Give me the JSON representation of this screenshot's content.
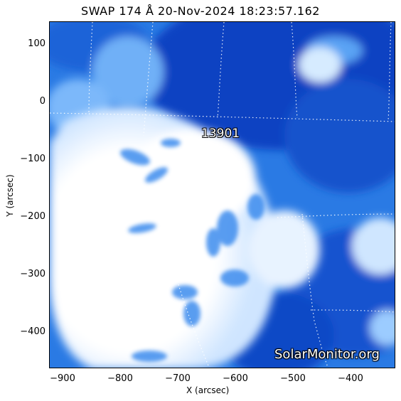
{
  "title": "SWAP 174 Å 20-Nov-2024 18:23:57.162",
  "axes": {
    "xlabel": "X (arcsec)",
    "ylabel": "Y (arcsec)",
    "xticks": [
      "−900",
      "−800",
      "−700",
      "−600",
      "−500",
      "−400"
    ],
    "yticks": [
      "100",
      "0",
      "−100",
      "−200",
      "−300",
      "−400"
    ]
  },
  "active_region_label": "13901",
  "watermark": "SolarMonitor.org",
  "colors": {
    "deep_blue": "#0a3fbf",
    "mid_blue": "#2c7ee8",
    "light_blue": "#8cc3ff",
    "bright": "#ffffff"
  }
}
